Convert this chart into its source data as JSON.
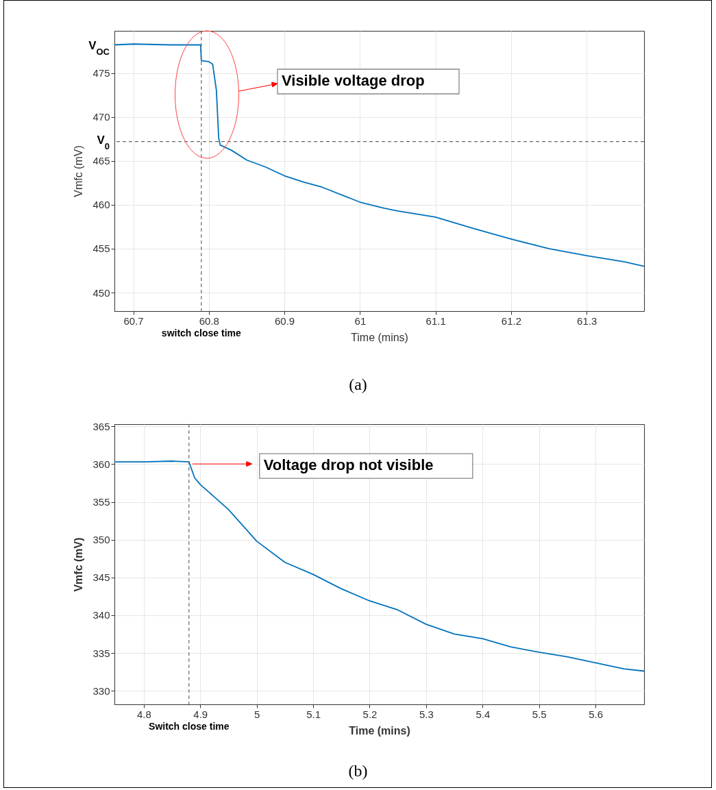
{
  "chart_data": [
    {
      "type": "line",
      "xlabel": "Time (mins)",
      "ylabel": "Vmfc (mV)",
      "xlim": [
        60.675,
        61.376
      ],
      "ylim": [
        447.9,
        479.8
      ],
      "xticks": [
        60.7,
        60.8,
        60.9,
        61,
        61.1,
        61.2,
        61.3
      ],
      "yticks": [
        450,
        455,
        460,
        465,
        470,
        475
      ],
      "grid": true,
      "series": [
        {
          "color": "#0072bd",
          "x": [
            60.675,
            60.7,
            60.75,
            60.789,
            60.79,
            60.8,
            60.805,
            60.81,
            60.813,
            60.815,
            60.83,
            60.85,
            60.875,
            60.9,
            60.925,
            60.95,
            61,
            61.032,
            61.05,
            61.1,
            61.15,
            61.2,
            61.25,
            61.3,
            61.35,
            61.376
          ],
          "values": [
            478.2,
            478.3,
            478.2,
            478.2,
            476.4,
            476.3,
            476.0,
            473.0,
            467.6,
            466.8,
            466.2,
            465.1,
            464.3,
            463.3,
            462.6,
            462.0,
            460.3,
            459.6,
            459.3,
            458.6,
            457.3,
            456.1,
            455.0,
            454.2,
            453.5,
            453.0
          ]
        }
      ],
      "ref_lines": [
        {
          "axis": "x",
          "value": 60.79,
          "label": "switch close time",
          "line_style": "dashed"
        },
        {
          "axis": "y",
          "value": 467.2,
          "label": "V$_{0}$",
          "line_style": "dashed"
        }
      ],
      "annotations": [
        {
          "text": "V$_{OC}$",
          "x": 60.675,
          "y": 478.1
        },
        "Visible voltage drop",
        "(a)"
      ]
    },
    {
      "type": "line",
      "xlabel": "Time (mins)",
      "ylabel": "Vmfc (mV)",
      "xlim": [
        4.748,
        5.686
      ],
      "ylim": [
        328.2,
        365.3
      ],
      "xticks": [
        4.8,
        4.9,
        5,
        5.1,
        5.2,
        5.3,
        5.4,
        5.5,
        5.6
      ],
      "yticks": [
        330,
        335,
        340,
        345,
        350,
        355,
        360,
        365
      ],
      "grid": true,
      "series": [
        {
          "color": "#0072bd",
          "x": [
            4.748,
            4.8,
            4.85,
            4.88,
            4.89,
            4.9,
            4.95,
            5.0,
            5.05,
            5.1,
            5.15,
            5.2,
            5.25,
            5.3,
            5.35,
            5.4,
            5.45,
            5.5,
            5.55,
            5.6,
            5.65,
            5.686
          ],
          "values": [
            360.3,
            360.3,
            360.4,
            360.3,
            358.2,
            357.3,
            354.0,
            349.8,
            347.0,
            345.4,
            343.5,
            341.9,
            340.7,
            338.8,
            337.5,
            336.9,
            335.8,
            335.1,
            334.5,
            333.7,
            332.9,
            332.6
          ]
        }
      ],
      "ref_lines": [
        {
          "axis": "x",
          "value": 4.88,
          "label": "Switch close time",
          "line_style": "dashed"
        }
      ],
      "annotations": [
        {
          "text": "Voltage drop not visible",
          "x": 4.88,
          "y": 360.3
        },
        "(b)"
      ]
    }
  ]
}
